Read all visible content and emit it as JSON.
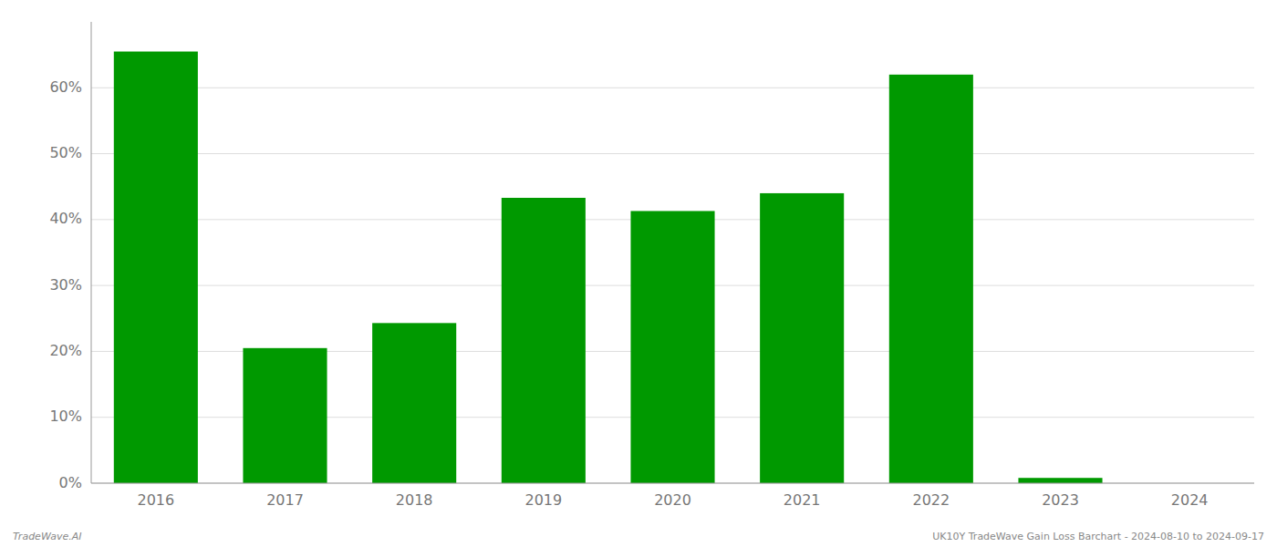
{
  "chart_data": {
    "type": "bar",
    "categories": [
      "2016",
      "2017",
      "2018",
      "2019",
      "2020",
      "2021",
      "2022",
      "2023",
      "2024"
    ],
    "values": [
      0.655,
      0.205,
      0.243,
      0.433,
      0.413,
      0.44,
      0.62,
      0.008,
      0.0
    ],
    "color": "#009900",
    "ylim": [
      0,
      0.7
    ],
    "yticks": [
      {
        "value": 0.0,
        "label": "0%"
      },
      {
        "value": 0.1,
        "label": "10%"
      },
      {
        "value": 0.2,
        "label": "20%"
      },
      {
        "value": 0.3,
        "label": "30%"
      },
      {
        "value": 0.4,
        "label": "40%"
      },
      {
        "value": 0.5,
        "label": "50%"
      },
      {
        "value": 0.6,
        "label": "60%"
      }
    ],
    "grid": true,
    "annotations": [
      "TradeWave.AI",
      "UK10Y TradeWave Gain Loss Barchart - 2024-08-10 to 2024-09-17"
    ]
  }
}
